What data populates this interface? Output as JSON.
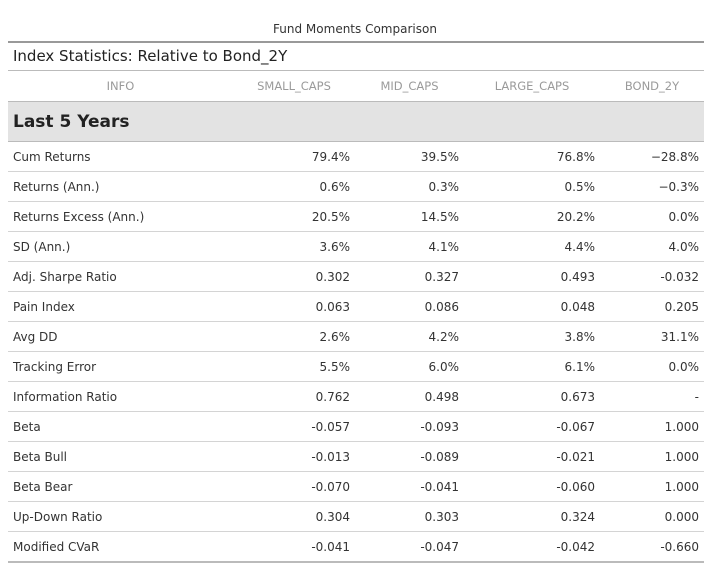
{
  "title": "Fund Moments Comparison",
  "subtitle": "Index Statistics: Relative to Bond_2Y",
  "columns": [
    "INFO",
    "SMALL_CAPS",
    "MID_CAPS",
    "LARGE_CAPS",
    "BOND_2Y"
  ],
  "group_label": "Last 5 Years",
  "rows": [
    {
      "label": "Cum Returns",
      "values": [
        "79.4%",
        "39.5%",
        "76.8%",
        "−28.8%"
      ]
    },
    {
      "label": "Returns (Ann.)",
      "values": [
        "0.6%",
        "0.3%",
        "0.5%",
        "−0.3%"
      ]
    },
    {
      "label": "Returns Excess (Ann.)",
      "values": [
        "20.5%",
        "14.5%",
        "20.2%",
        "0.0%"
      ]
    },
    {
      "label": "SD (Ann.)",
      "values": [
        "3.6%",
        "4.1%",
        "4.4%",
        "4.0%"
      ]
    },
    {
      "label": "Adj. Sharpe Ratio",
      "values": [
        "0.302",
        "0.327",
        "0.493",
        "-0.032"
      ]
    },
    {
      "label": "Pain Index",
      "values": [
        "0.063",
        "0.086",
        "0.048",
        "0.205"
      ]
    },
    {
      "label": "Avg DD",
      "values": [
        "2.6%",
        "4.2%",
        "3.8%",
        "31.1%"
      ]
    },
    {
      "label": "Tracking Error",
      "values": [
        "5.5%",
        "6.0%",
        "6.1%",
        "0.0%"
      ]
    },
    {
      "label": "Information Ratio",
      "values": [
        "0.762",
        "0.498",
        "0.673",
        "-"
      ]
    },
    {
      "label": "Beta",
      "values": [
        "-0.057",
        "-0.093",
        "-0.067",
        "1.000"
      ]
    },
    {
      "label": "Beta Bull",
      "values": [
        "-0.013",
        "-0.089",
        "-0.021",
        "1.000"
      ]
    },
    {
      "label": "Beta Bear",
      "values": [
        "-0.070",
        "-0.041",
        "-0.060",
        "1.000"
      ]
    },
    {
      "label": "Up-Down Ratio",
      "values": [
        "0.304",
        "0.303",
        "0.324",
        "0.000"
      ]
    },
    {
      "label": "Modified CVaR",
      "values": [
        "-0.041",
        "-0.047",
        "-0.042",
        "-0.660"
      ]
    }
  ]
}
